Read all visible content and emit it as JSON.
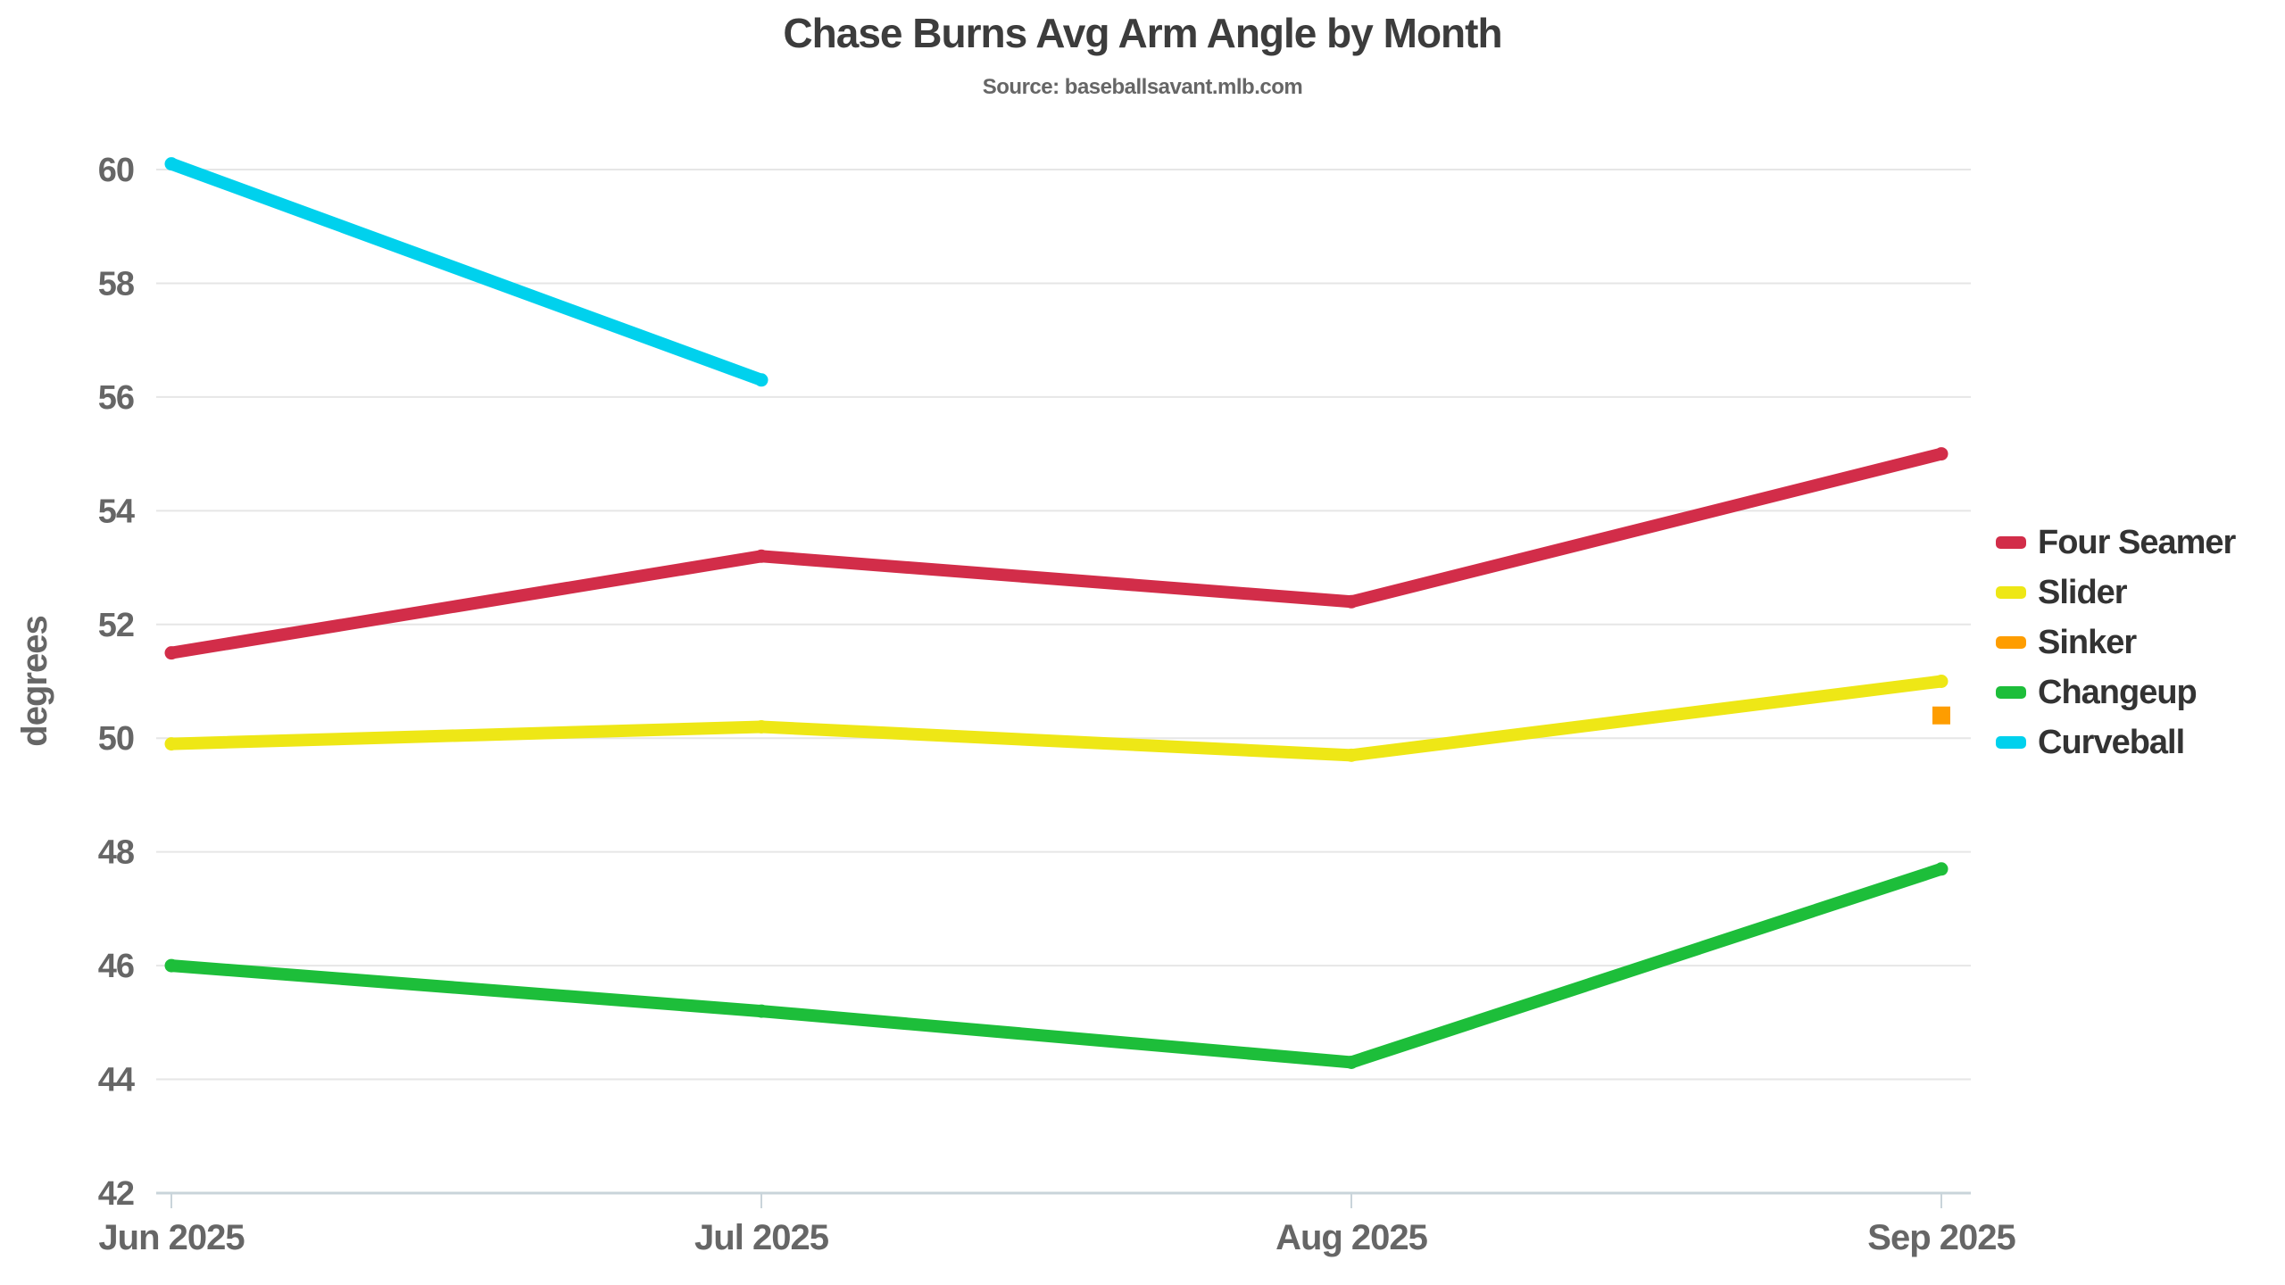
{
  "chart_data": {
    "type": "line",
    "title": "Chase Burns Avg Arm Angle by Month",
    "subtitle": "Source: baseballsavant.mlb.com",
    "ylabel": "degrees",
    "xlabel": "",
    "categories": [
      "Jun 2025",
      "Jul 2025",
      "Aug 2025",
      "Sep 2025"
    ],
    "ylim": [
      42,
      60
    ],
    "ytick_step": 2,
    "grid": true,
    "legend_position": "right",
    "series": [
      {
        "name": "Four Seamer",
        "color": "#D22D49",
        "marker": "round",
        "values": [
          51.5,
          53.2,
          52.4,
          55.0
        ]
      },
      {
        "name": "Slider",
        "color": "#EEE716",
        "marker": "round",
        "values": [
          49.9,
          50.2,
          49.7,
          51.0
        ]
      },
      {
        "name": "Sinker",
        "color": "#FE9D00",
        "marker": "square",
        "values": [
          null,
          null,
          null,
          50.4
        ]
      },
      {
        "name": "Changeup",
        "color": "#1DBE3A",
        "marker": "round",
        "values": [
          46.0,
          45.2,
          44.3,
          47.7
        ]
      },
      {
        "name": "Curveball",
        "color": "#00D1ED",
        "marker": "round",
        "values": [
          60.1,
          56.3,
          null,
          null
        ]
      }
    ],
    "style": {
      "grid_color": "#e6e6e6",
      "axis_color": "#c9d4da",
      "tick_label_color": "#666666",
      "title_color": "#3c3c3c",
      "legend_text_color": "#333333",
      "line_width": 14
    }
  }
}
